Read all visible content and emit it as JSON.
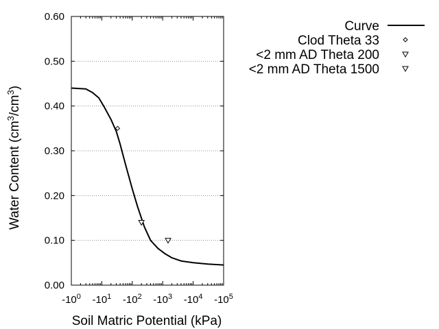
{
  "chart_data": {
    "type": "line",
    "xlabel": "Soil Matric Potential (kPa)",
    "ylabel_main": "Water Content (cm",
    "ylabel_sup1": "3",
    "ylabel_mid": "/cm",
    "ylabel_sup2": "3",
    "ylabel_end": ")",
    "x_scale": "log-negative",
    "xlim_exponent": [
      0,
      5
    ],
    "ylim": [
      0.0,
      0.6
    ],
    "y_ticks": [
      "0.00",
      "0.10",
      "0.20",
      "0.30",
      "0.40",
      "0.50",
      "0.60"
    ],
    "x_ticks": [
      {
        "base": "-10",
        "exp": "0"
      },
      {
        "base": "-10",
        "exp": "1"
      },
      {
        "base": "-10",
        "exp": "2"
      },
      {
        "base": "-10",
        "exp": "3"
      },
      {
        "base": "-10",
        "exp": "4"
      },
      {
        "base": "-10",
        "exp": "5"
      }
    ],
    "grid": "horizontal-dotted",
    "legend_placement": "top-right outside",
    "series": [
      {
        "name": "Curve",
        "style": "line",
        "color": "#000000",
        "points": [
          {
            "x": -1,
            "y": 0.44
          },
          {
            "x": -3,
            "y": 0.438
          },
          {
            "x": -5,
            "y": 0.43
          },
          {
            "x": -8,
            "y": 0.418
          },
          {
            "x": -12,
            "y": 0.398
          },
          {
            "x": -20,
            "y": 0.37
          },
          {
            "x": -30,
            "y": 0.343
          },
          {
            "x": -40,
            "y": 0.315
          },
          {
            "x": -60,
            "y": 0.27
          },
          {
            "x": -100,
            "y": 0.215
          },
          {
            "x": -150,
            "y": 0.175
          },
          {
            "x": -250,
            "y": 0.13
          },
          {
            "x": -400,
            "y": 0.1
          },
          {
            "x": -700,
            "y": 0.082
          },
          {
            "x": -1200,
            "y": 0.07
          },
          {
            "x": -2000,
            "y": 0.061
          },
          {
            "x": -4000,
            "y": 0.054
          },
          {
            "x": -10000,
            "y": 0.05
          },
          {
            "x": -30000,
            "y": 0.047
          },
          {
            "x": -100000,
            "y": 0.045
          }
        ]
      },
      {
        "name": "Clod Theta 33",
        "style": "marker",
        "marker": "diamond",
        "points": [
          {
            "x": -33,
            "y": 0.35
          }
        ]
      },
      {
        "name": "<2 mm AD Theta 200",
        "style": "marker",
        "marker": "triangle-down",
        "points": [
          {
            "x": -200,
            "y": 0.14
          }
        ]
      },
      {
        "name": "<2 mm AD Theta 1500",
        "style": "marker",
        "marker": "triangle-down",
        "points": [
          {
            "x": -1500,
            "y": 0.1
          }
        ]
      }
    ]
  }
}
